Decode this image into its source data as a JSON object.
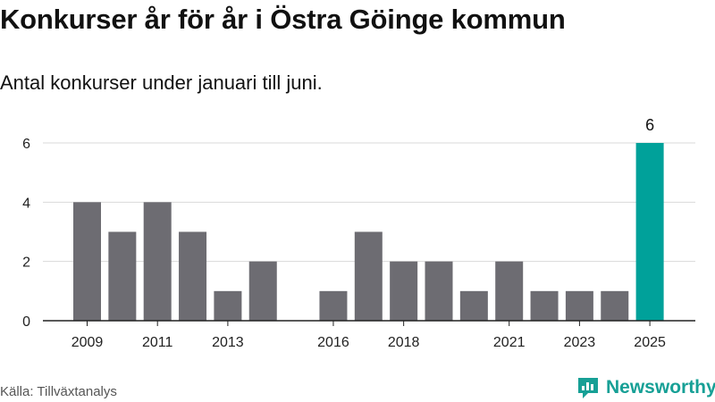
{
  "header": {
    "title": "Konkurser år för år i Östra Göinge kommun",
    "subtitle": "Antal konkurser under januari till juni."
  },
  "footer": {
    "source": "Källa: Tillväxtanalys",
    "brand": "Newsworthy"
  },
  "colors": {
    "bar": "#6d6c72",
    "highlight": "#00a19a",
    "grid": "#d9d9d9",
    "axis": "#222222",
    "brand": "#17a096"
  },
  "chart_data": {
    "type": "bar",
    "x": [
      2009,
      2010,
      2011,
      2012,
      2013,
      2014,
      2016,
      2017,
      2018,
      2019,
      2020,
      2021,
      2022,
      2023,
      2024,
      2025
    ],
    "values": [
      4,
      3,
      4,
      3,
      1,
      2,
      1,
      3,
      2,
      2,
      1,
      2,
      1,
      1,
      1,
      6
    ],
    "x_tick_labels": [
      "2009",
      "2011",
      "2013",
      "2016",
      "2018",
      "2021",
      "2023",
      "2025"
    ],
    "y_ticks": [
      0,
      2,
      4,
      6
    ],
    "ylim": [
      0,
      6
    ],
    "highlight": 2025,
    "data_labels": [
      {
        "x": 2025,
        "text": "6"
      }
    ],
    "grid": true,
    "title": "Konkurser år för år i Östra Göinge kommun",
    "subtitle": "Antal konkurser under januari till juni."
  }
}
